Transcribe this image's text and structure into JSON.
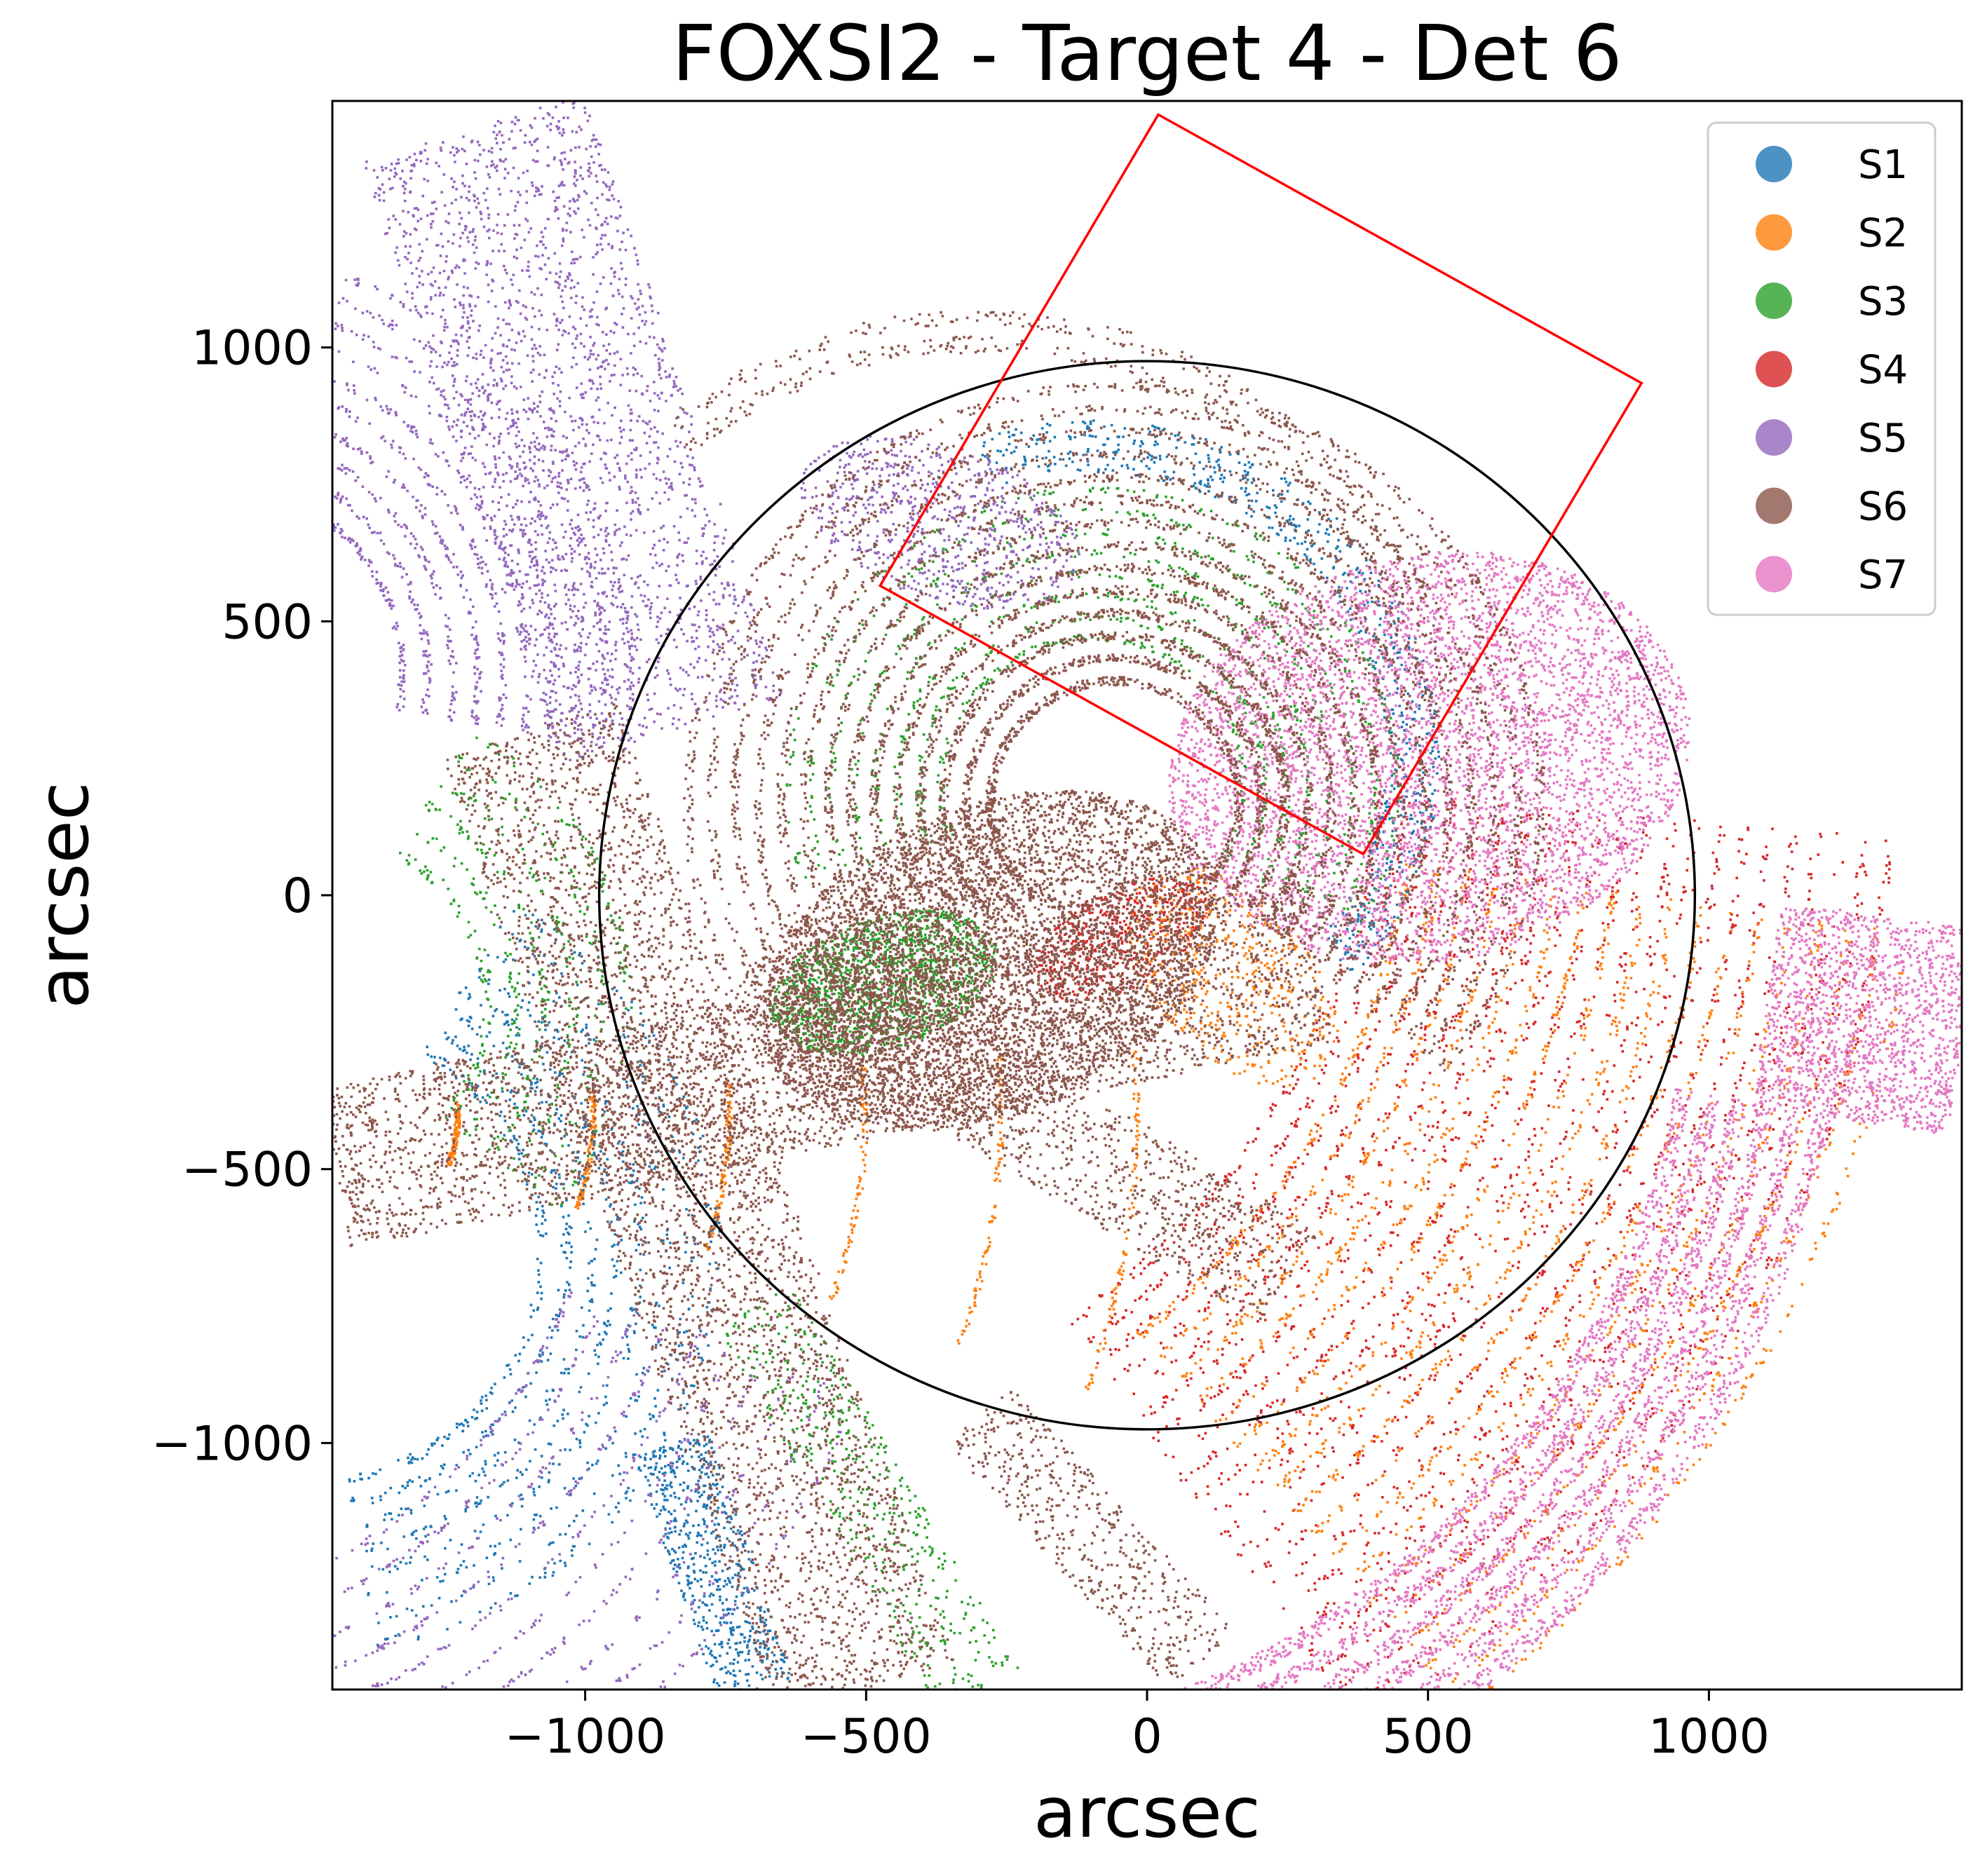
{
  "chart_data": {
    "type": "scatter",
    "title": "FOXSI2 - Target 4 - Det 6",
    "xlabel": "arcsec",
    "ylabel": "arcsec",
    "xlim": [
      -1450,
      1450
    ],
    "ylim": [
      -1450,
      1450
    ],
    "xticks": [
      -1000,
      -500,
      0,
      500,
      1000
    ],
    "yticks": [
      -1000,
      -500,
      0,
      500,
      1000
    ],
    "xtick_labels": [
      "−1000",
      "−500",
      "0",
      "500",
      "1000"
    ],
    "ytick_labels": [
      "−1000",
      "−500",
      "0",
      "500",
      "1000"
    ],
    "grid": false,
    "legend_position": "top-right",
    "series": [
      {
        "name": "S1",
        "color": "#1f77b4"
      },
      {
        "name": "S2",
        "color": "#ff7f0e"
      },
      {
        "name": "S3",
        "color": "#2ca02c"
      },
      {
        "name": "S4",
        "color": "#d62728"
      },
      {
        "name": "S5",
        "color": "#9467bd"
      },
      {
        "name": "S6",
        "color": "#8c564b"
      },
      {
        "name": "S7",
        "color": "#e377c2"
      }
    ],
    "solar_limb": {
      "center": [
        0,
        0
      ],
      "radius": 975,
      "color": "#000000"
    },
    "fov_square": {
      "color": "#ff0000",
      "corners": [
        [
          20,
          1425
        ],
        [
          880,
          935
        ],
        [
          385,
          75
        ],
        [
          -475,
          565
        ]
      ]
    }
  }
}
